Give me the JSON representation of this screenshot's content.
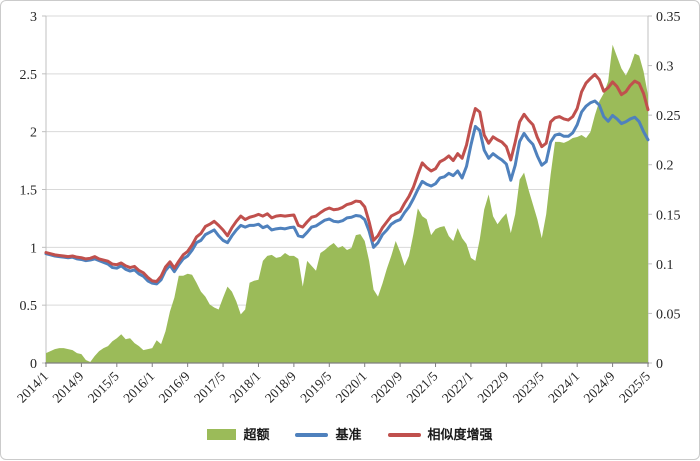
{
  "chart_data": {
    "type": "area+line combo",
    "title": "",
    "x_axis": {
      "start": "2014/1",
      "end": "2025/5",
      "interval": "monthly",
      "tick_every_months": 8,
      "tick_labels": [
        "2014/1",
        "2014/9",
        "2015/5",
        "2016/1",
        "2016/9",
        "2017/5",
        "2018/1",
        "2018/9",
        "2019/5",
        "2020/1",
        "2020/9",
        "2021/5",
        "2022/1",
        "2022/9",
        "2023/5",
        "2024/1",
        "2024/9",
        "2025/5"
      ]
    },
    "left_axis": {
      "min": 0,
      "max": 3,
      "step": 0.5,
      "tick_labels": [
        "0",
        "0.5",
        "1",
        "1.5",
        "2",
        "2.5",
        "3"
      ]
    },
    "right_axis": {
      "min": 0,
      "max": 0.35,
      "step": 0.05,
      "tick_labels": [
        "0",
        "0.05",
        "0.1",
        "0.15",
        "0.2",
        "0.25",
        "0.3",
        "0.35"
      ]
    },
    "grid": "horizontal",
    "legend_position": "bottom-center",
    "series": [
      {
        "key": "excess",
        "name": "超额",
        "type": "area",
        "axis": "right",
        "color": "#9bbb59",
        "values": [
          0.01,
          0.012,
          0.014,
          0.015,
          0.015,
          0.014,
          0.013,
          0.01,
          0.009,
          0.003,
          0.001,
          0.007,
          0.012,
          0.015,
          0.017,
          0.022,
          0.025,
          0.029,
          0.024,
          0.025,
          0.02,
          0.017,
          0.013,
          0.014,
          0.015,
          0.023,
          0.019,
          0.032,
          0.052,
          0.066,
          0.088,
          0.088,
          0.09,
          0.089,
          0.081,
          0.072,
          0.067,
          0.059,
          0.056,
          0.054,
          0.066,
          0.077,
          0.072,
          0.062,
          0.049,
          0.054,
          0.081,
          0.083,
          0.084,
          0.103,
          0.108,
          0.109,
          0.106,
          0.107,
          0.111,
          0.108,
          0.108,
          0.105,
          0.077,
          0.103,
          0.098,
          0.093,
          0.111,
          0.114,
          0.118,
          0.121,
          0.116,
          0.118,
          0.114,
          0.116,
          0.129,
          0.13,
          0.123,
          0.103,
          0.074,
          0.067,
          0.08,
          0.095,
          0.108,
          0.123,
          0.112,
          0.098,
          0.108,
          0.13,
          0.156,
          0.148,
          0.145,
          0.129,
          0.135,
          0.137,
          0.138,
          0.128,
          0.123,
          0.136,
          0.126,
          0.12,
          0.106,
          0.103,
          0.125,
          0.155,
          0.17,
          0.148,
          0.14,
          0.146,
          0.151,
          0.131,
          0.15,
          0.185,
          0.192,
          0.175,
          0.16,
          0.145,
          0.126,
          0.15,
          0.19,
          0.223,
          0.223,
          0.222,
          0.224,
          0.227,
          0.228,
          0.23,
          0.227,
          0.233,
          0.25,
          0.264,
          0.272,
          0.284,
          0.321,
          0.309,
          0.297,
          0.29,
          0.299,
          0.312,
          0.31,
          0.294,
          0.27
        ]
      },
      {
        "key": "benchmark",
        "name": "基准",
        "type": "line",
        "axis": "left",
        "color": "#4f81bd",
        "values": [
          0.945,
          0.935,
          0.925,
          0.92,
          0.915,
          0.91,
          0.915,
          0.9,
          0.895,
          0.885,
          0.89,
          0.9,
          0.885,
          0.87,
          0.855,
          0.825,
          0.82,
          0.84,
          0.81,
          0.795,
          0.805,
          0.77,
          0.75,
          0.71,
          0.69,
          0.684,
          0.72,
          0.8,
          0.845,
          0.79,
          0.85,
          0.9,
          0.925,
          0.975,
          1.04,
          1.06,
          1.11,
          1.13,
          1.15,
          1.1,
          1.06,
          1.04,
          1.1,
          1.15,
          1.19,
          1.175,
          1.19,
          1.19,
          1.2,
          1.17,
          1.185,
          1.15,
          1.16,
          1.165,
          1.16,
          1.17,
          1.175,
          1.1,
          1.09,
          1.13,
          1.175,
          1.185,
          1.21,
          1.235,
          1.245,
          1.225,
          1.22,
          1.23,
          1.255,
          1.26,
          1.275,
          1.27,
          1.24,
          1.14,
          1.0,
          1.04,
          1.11,
          1.15,
          1.2,
          1.225,
          1.24,
          1.3,
          1.35,
          1.42,
          1.5,
          1.57,
          1.545,
          1.53,
          1.55,
          1.6,
          1.61,
          1.64,
          1.62,
          1.66,
          1.6,
          1.7,
          1.885,
          2.045,
          2.01,
          1.84,
          1.77,
          1.81,
          1.78,
          1.755,
          1.72,
          1.58,
          1.71,
          1.915,
          1.985,
          1.93,
          1.89,
          1.79,
          1.71,
          1.74,
          1.91,
          1.97,
          1.98,
          1.96,
          1.96,
          1.99,
          2.06,
          2.17,
          2.22,
          2.25,
          2.265,
          2.23,
          2.13,
          2.09,
          2.14,
          2.11,
          2.07,
          2.086,
          2.11,
          2.125,
          2.086,
          2.0,
          1.93
        ]
      },
      {
        "key": "similarity-enhanced",
        "name": "相似度增强",
        "type": "line",
        "axis": "left",
        "color": "#c0504d",
        "values": [
          0.955,
          0.945,
          0.935,
          0.93,
          0.925,
          0.92,
          0.925,
          0.915,
          0.91,
          0.9,
          0.905,
          0.92,
          0.9,
          0.89,
          0.88,
          0.855,
          0.85,
          0.865,
          0.84,
          0.825,
          0.835,
          0.8,
          0.78,
          0.74,
          0.71,
          0.705,
          0.75,
          0.83,
          0.875,
          0.82,
          0.88,
          0.935,
          0.965,
          1.02,
          1.09,
          1.12,
          1.18,
          1.2,
          1.225,
          1.19,
          1.15,
          1.1,
          1.17,
          1.225,
          1.27,
          1.24,
          1.26,
          1.27,
          1.285,
          1.27,
          1.29,
          1.255,
          1.27,
          1.275,
          1.27,
          1.275,
          1.28,
          1.19,
          1.175,
          1.22,
          1.26,
          1.27,
          1.3,
          1.325,
          1.34,
          1.325,
          1.33,
          1.345,
          1.37,
          1.38,
          1.4,
          1.395,
          1.35,
          1.22,
          1.06,
          1.1,
          1.17,
          1.22,
          1.27,
          1.29,
          1.31,
          1.38,
          1.44,
          1.52,
          1.63,
          1.73,
          1.69,
          1.66,
          1.68,
          1.74,
          1.76,
          1.79,
          1.75,
          1.81,
          1.77,
          1.885,
          2.06,
          2.2,
          2.17,
          1.97,
          1.9,
          1.955,
          1.93,
          1.91,
          1.87,
          1.755,
          1.91,
          2.085,
          2.15,
          2.1,
          2.06,
          1.95,
          1.87,
          1.9,
          2.085,
          2.12,
          2.13,
          2.11,
          2.1,
          2.13,
          2.2,
          2.345,
          2.42,
          2.46,
          2.495,
          2.45,
          2.35,
          2.38,
          2.43,
          2.39,
          2.32,
          2.345,
          2.4,
          2.437,
          2.417,
          2.33,
          2.19
        ]
      }
    ]
  },
  "colors": {
    "background": "#ffffff",
    "frame_border": "#cbcbcb",
    "gridline": "#d9d9d9",
    "side_axis": "#c0c0c0",
    "bottom_axis": "#7f7f7f",
    "tick_text": "#262626"
  }
}
